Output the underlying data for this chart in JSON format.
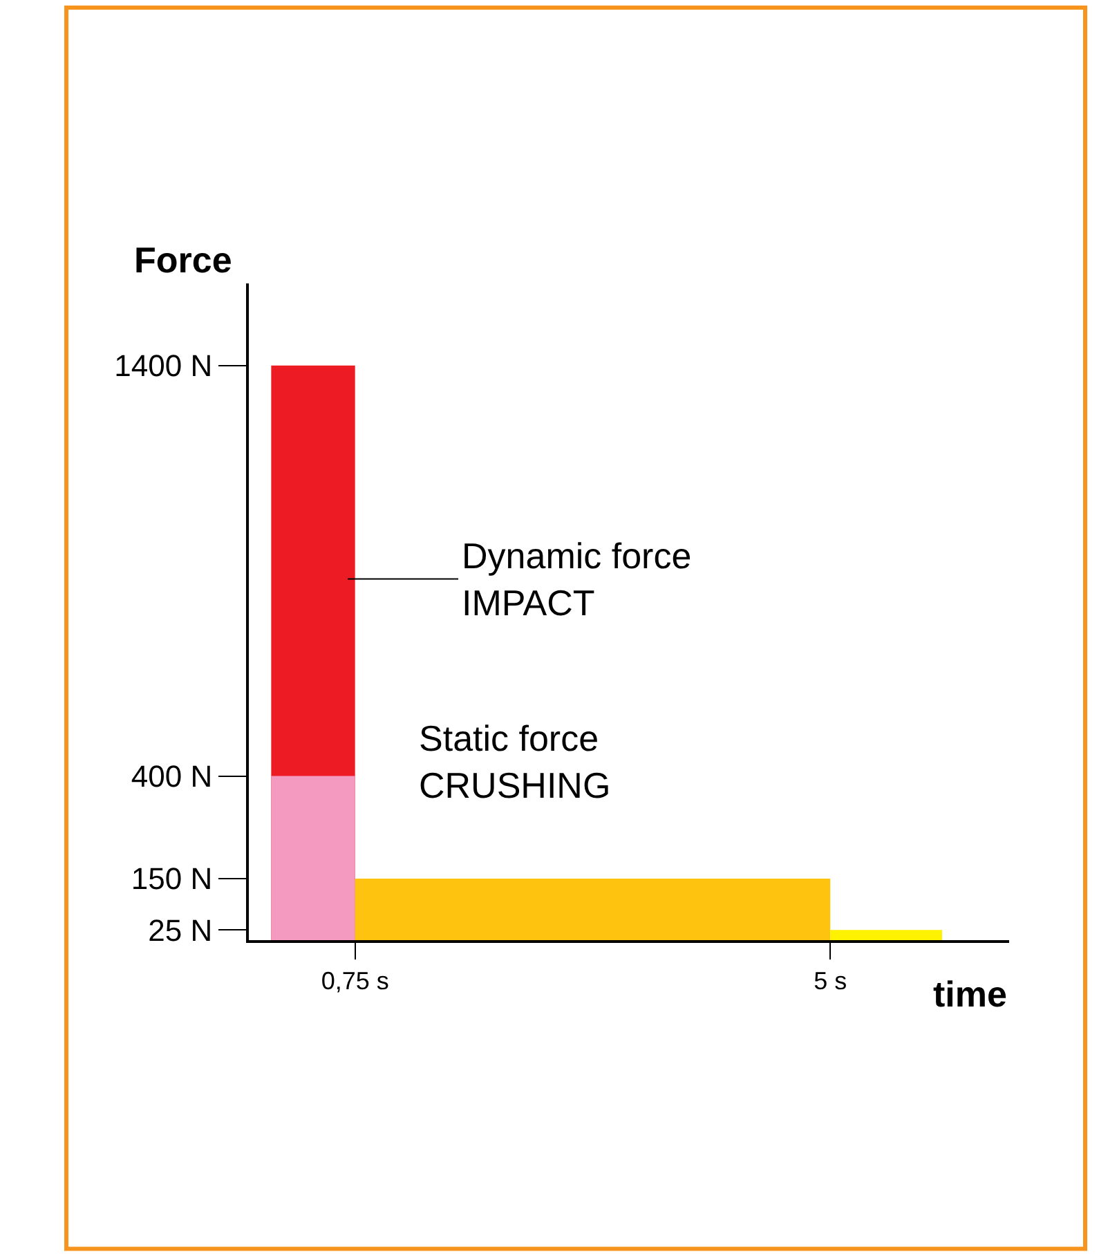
{
  "chart_data": {
    "type": "area",
    "xlabel": "time",
    "ylabel": "Force",
    "series": [
      {
        "color": "#ed1c24",
        "x": [
          0,
          0.75
        ],
        "values": [
          1400,
          1400
        ]
      },
      {
        "color": "#f49ac1",
        "x": [
          0,
          0.75
        ],
        "values": [
          400,
          400
        ]
      },
      {
        "color": "#fdc30e",
        "x": [
          0.75,
          5
        ],
        "values": [
          150,
          150
        ]
      },
      {
        "color": "#fff200",
        "x": [
          5,
          6
        ],
        "values": [
          25,
          25
        ]
      }
    ],
    "xlim": [
      -0.2,
      6.6
    ],
    "ylim": [
      0,
      1600
    ],
    "xticks": [
      {
        "value": 0.75,
        "label": "0,75 s"
      },
      {
        "value": 5,
        "label": "5 s"
      }
    ],
    "yticks": [
      {
        "value": 25,
        "label": "25 N"
      },
      {
        "value": 150,
        "label": "150 N"
      },
      {
        "value": 400,
        "label": "400 N"
      },
      {
        "value": 1400,
        "label": "1400 N"
      }
    ],
    "annotations": [
      "Dynamic force\nIMPACT",
      "Static force\nCRUSHING"
    ]
  }
}
